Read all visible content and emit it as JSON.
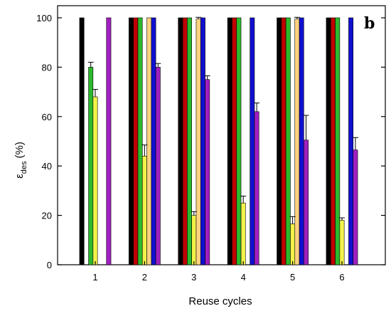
{
  "chart_data": {
    "type": "bar",
    "panel_label": "b",
    "xlabel": "Reuse cycles",
    "ylabel_main": "ε",
    "ylabel_sub": "des",
    "ylabel_unit": "(%)",
    "categories": [
      "1",
      "2",
      "3",
      "4",
      "5",
      "6"
    ],
    "yticks": [
      "0",
      "20",
      "40",
      "60",
      "80",
      "100"
    ],
    "ylim": [
      0,
      100
    ],
    "grid": false,
    "series": [
      {
        "color": "#000000",
        "values": [
          100,
          100,
          100,
          100,
          100,
          100
        ],
        "errors": [
          0,
          0,
          0,
          0,
          0,
          0
        ]
      },
      {
        "color": "#c00000",
        "values": [
          0,
          100,
          100,
          100,
          100,
          100
        ],
        "errors": [
          0,
          0,
          0,
          0,
          0,
          0
        ]
      },
      {
        "color": "#2db92d",
        "values": [
          80,
          100,
          100,
          100,
          100,
          100
        ],
        "errors": [
          2,
          0,
          0,
          0,
          0,
          0
        ]
      },
      {
        "color": "#f2f24a",
        "values": [
          68,
          44,
          20,
          25,
          16.5,
          18
        ],
        "errors": [
          3,
          4.5,
          1.5,
          2.8,
          3,
          1
        ]
      },
      {
        "color": "#ffd27f",
        "values": [
          0,
          100,
          99.5,
          0,
          99.5,
          0
        ],
        "errors": [
          0,
          0,
          0.7,
          0,
          0.7,
          0
        ]
      },
      {
        "color": "#1010d0",
        "values": [
          0,
          100,
          100,
          100,
          100,
          100
        ],
        "errors": [
          0,
          0,
          0,
          0,
          0,
          0
        ]
      },
      {
        "color": "#a020c0",
        "values": [
          100,
          80,
          75,
          62,
          50.5,
          46.5
        ],
        "errors": [
          0,
          1.5,
          1.5,
          3.5,
          10,
          5
        ]
      }
    ]
  }
}
